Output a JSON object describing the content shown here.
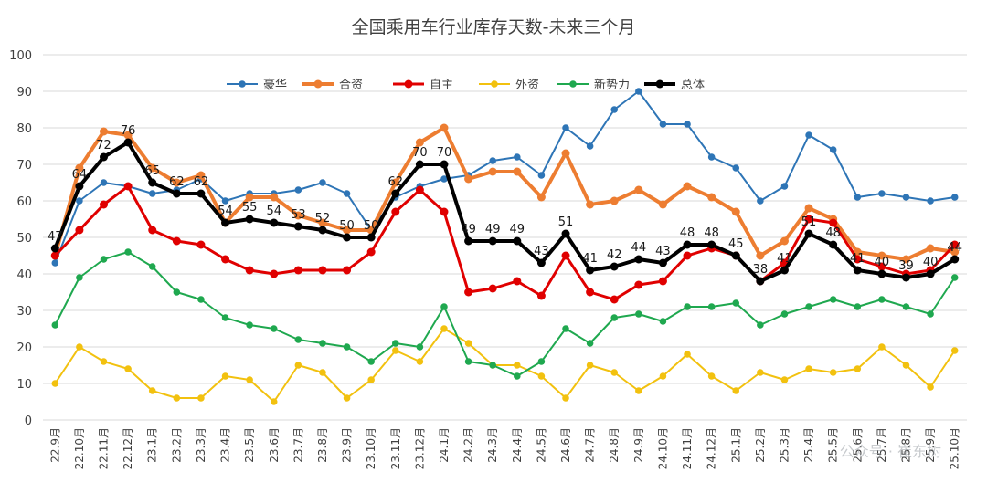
{
  "chart_data": {
    "type": "line",
    "title": "全国乘用车行业库存天数-未来三个月",
    "xlabel": "",
    "ylabel": "",
    "ylim": [
      0,
      100
    ],
    "yticks": [
      0,
      10,
      20,
      30,
      40,
      50,
      60,
      70,
      80,
      90,
      100
    ],
    "grid": true,
    "legend_position": "top",
    "categories": [
      "22.9月",
      "22.10月",
      "22.11月",
      "22.12月",
      "23.1月",
      "23.2月",
      "23.3月",
      "23.4月",
      "23.5月",
      "23.6月",
      "23.7月",
      "23.8月",
      "23.9月",
      "23.10月",
      "23.11月",
      "23.12月",
      "24.1月",
      "24.2月",
      "24.3月",
      "24.4月",
      "24.5月",
      "24.6月",
      "24.7月",
      "24.8月",
      "24.9月",
      "24.10月",
      "24.11月",
      "24.12月",
      "25.1月",
      "25.2月",
      "25.3月",
      "25.4月",
      "25.5月",
      "25.6月",
      "25.7月",
      "25.8月",
      "25.9月",
      "25.10月"
    ],
    "series": [
      {
        "name": "豪华",
        "color": "#2e75b6",
        "width": 2,
        "values": [
          43,
          60,
          65,
          64,
          62,
          63,
          66,
          60,
          62,
          62,
          63,
          65,
          62,
          52,
          61,
          64,
          66,
          67,
          71,
          72,
          67,
          80,
          75,
          85,
          90,
          81,
          81,
          72,
          69,
          60,
          64,
          78,
          74,
          61,
          62,
          61,
          60,
          61
        ]
      },
      {
        "name": "合资",
        "color": "#ed7d31",
        "width": 4,
        "values": [
          45,
          69,
          79,
          78,
          69,
          65,
          67,
          54,
          61,
          61,
          56,
          54,
          52,
          52,
          65,
          76,
          80,
          66,
          68,
          68,
          61,
          73,
          59,
          60,
          63,
          59,
          64,
          61,
          57,
          45,
          49,
          58,
          55,
          46,
          45,
          44,
          47,
          46
        ]
      },
      {
        "name": "自主",
        "color": "#e00000",
        "width": 3,
        "values": [
          45,
          52,
          59,
          64,
          52,
          49,
          48,
          44,
          41,
          40,
          41,
          41,
          41,
          46,
          57,
          63,
          57,
          35,
          36,
          38,
          34,
          45,
          35,
          33,
          37,
          38,
          45,
          47,
          45,
          38,
          43,
          55,
          54,
          44,
          42,
          40,
          41,
          48
        ]
      },
      {
        "name": "外资",
        "color": "#f2c10f",
        "width": 2,
        "values": [
          10,
          20,
          16,
          14,
          8,
          6,
          6,
          12,
          11,
          5,
          15,
          13,
          6,
          11,
          19,
          16,
          25,
          21,
          15,
          15,
          12,
          6,
          15,
          13,
          8,
          12,
          18,
          12,
          8,
          13,
          11,
          14,
          13,
          14,
          20,
          15,
          9,
          19
        ]
      },
      {
        "name": "新势力",
        "color": "#1fa84f",
        "width": 2,
        "values": [
          26,
          39,
          44,
          46,
          42,
          35,
          33,
          28,
          26,
          25,
          22,
          21,
          20,
          16,
          21,
          20,
          31,
          16,
          15,
          12,
          16,
          25,
          21,
          28,
          29,
          27,
          31,
          31,
          32,
          26,
          29,
          31,
          33,
          31,
          33,
          31,
          29,
          39
        ]
      },
      {
        "name": "总体",
        "color": "#000000",
        "width": 4,
        "values": [
          47,
          64,
          72,
          76,
          65,
          62,
          62,
          54,
          55,
          54,
          53,
          52,
          50,
          50,
          62,
          70,
          70,
          49,
          49,
          49,
          43,
          51,
          41,
          42,
          44,
          43,
          48,
          48,
          45,
          38,
          41,
          51,
          48,
          41,
          40,
          39,
          40,
          44
        ]
      }
    ],
    "data_labels": {
      "series": "总体",
      "values": [
        47,
        64,
        72,
        76,
        65,
        62,
        62,
        54,
        55,
        54,
        53,
        52,
        50,
        50,
        62,
        70,
        70,
        49,
        49,
        49,
        43,
        51,
        41,
        42,
        44,
        43,
        48,
        48,
        45,
        38,
        41,
        51,
        48,
        41,
        40,
        39,
        40,
        44
      ]
    }
  },
  "watermark": "公众号 · 崔东树"
}
